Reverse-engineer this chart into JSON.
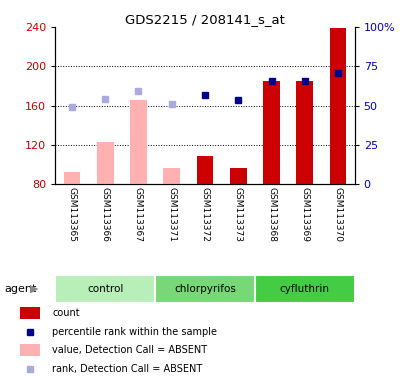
{
  "title": "GDS2215 / 208141_s_at",
  "samples": [
    "GSM113365",
    "GSM113366",
    "GSM113367",
    "GSM113371",
    "GSM113372",
    "GSM113373",
    "GSM113368",
    "GSM113369",
    "GSM113370"
  ],
  "groups": [
    {
      "label": "control",
      "indices": [
        0,
        1,
        2
      ],
      "color": "#B8EEB8"
    },
    {
      "label": "chlorpyrifos",
      "indices": [
        3,
        4,
        5
      ],
      "color": "#78D878"
    },
    {
      "label": "cyfluthrin",
      "indices": [
        6,
        7,
        8
      ],
      "color": "#44CC44"
    }
  ],
  "count_values": [
    null,
    null,
    null,
    null,
    109,
    97,
    185,
    185,
    239
  ],
  "count_absent": [
    93,
    123,
    166,
    97,
    null,
    null,
    null,
    null,
    null
  ],
  "rank_values": [
    null,
    null,
    null,
    null,
    171,
    166,
    185,
    185,
    193
  ],
  "rank_absent": [
    159,
    167,
    175,
    162,
    null,
    null,
    null,
    null,
    null
  ],
  "ylim_left": [
    80,
    240
  ],
  "ylim_right": [
    0,
    100
  ],
  "yticks_left": [
    80,
    120,
    160,
    200,
    240
  ],
  "yticks_right": [
    0,
    25,
    50,
    75,
    100
  ],
  "ylabel_left_color": "#CC0000",
  "ylabel_right_color": "#0000CC",
  "bar_color_present": "#CC0000",
  "bar_color_absent": "#FFB0B0",
  "dot_color_present": "#00008B",
  "dot_color_absent": "#AAAADD",
  "agent_label": "agent",
  "tick_label_area_color": "#C8C8C8",
  "legend_items": [
    {
      "color": "#CC0000",
      "type": "rect",
      "label": "count"
    },
    {
      "color": "#00008B",
      "type": "square",
      "label": "percentile rank within the sample"
    },
    {
      "color": "#FFB0B0",
      "type": "rect",
      "label": "value, Detection Call = ABSENT"
    },
    {
      "color": "#AAAADD",
      "type": "square",
      "label": "rank, Detection Call = ABSENT"
    }
  ]
}
